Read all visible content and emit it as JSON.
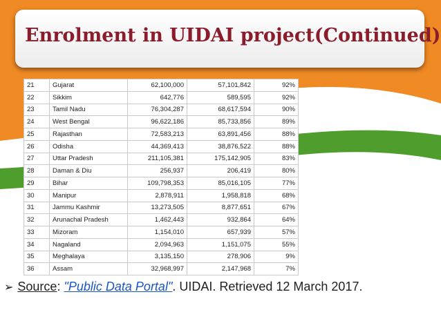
{
  "slide": {
    "title": "Enrolment in UIDAI project(Continued)"
  },
  "table": {
    "rows": [
      {
        "rank": "21",
        "state": "Gujarat",
        "population": "62,100,000",
        "enrolled": "57,101,842",
        "percent": "92%"
      },
      {
        "rank": "22",
        "state": "Sikkim",
        "population": "642,776",
        "enrolled": "589,595",
        "percent": "92%"
      },
      {
        "rank": "23",
        "state": "Tamil Nadu",
        "population": "76,304,287",
        "enrolled": "68,617,594",
        "percent": "90%"
      },
      {
        "rank": "24",
        "state": "West Bengal",
        "population": "96,622,186",
        "enrolled": "85,733,856",
        "percent": "89%"
      },
      {
        "rank": "25",
        "state": "Rajasthan",
        "population": "72,583,213",
        "enrolled": "63,891,456",
        "percent": "88%"
      },
      {
        "rank": "26",
        "state": "Odisha",
        "population": "44,369,413",
        "enrolled": "38,876,522",
        "percent": "88%"
      },
      {
        "rank": "27",
        "state": "Uttar Pradesh",
        "population": "211,105,381",
        "enrolled": "175,142,905",
        "percent": "83%"
      },
      {
        "rank": "28",
        "state": "Daman & Diu",
        "population": "256,937",
        "enrolled": "206,419",
        "percent": "80%"
      },
      {
        "rank": "29",
        "state": "Bihar",
        "population": "109,798,353",
        "enrolled": "85,016,105",
        "percent": "77%"
      },
      {
        "rank": "30",
        "state": "Manipur",
        "population": "2,878,911",
        "enrolled": "1,958,818",
        "percent": "68%"
      },
      {
        "rank": "31",
        "state": "Jammu Kashmir",
        "population": "13,273,505",
        "enrolled": "8,877,651",
        "percent": "67%"
      },
      {
        "rank": "32",
        "state": "Arunachal Pradesh",
        "population": "1,462,443",
        "enrolled": "932,864",
        "percent": "64%"
      },
      {
        "rank": "33",
        "state": "Mizoram",
        "population": "1,154,010",
        "enrolled": "657,939",
        "percent": "57%"
      },
      {
        "rank": "34",
        "state": "Nagaland",
        "population": "2,094,963",
        "enrolled": "1,151,075",
        "percent": "55%"
      },
      {
        "rank": "35",
        "state": "Meghalaya",
        "population": "3,135,150",
        "enrolled": "278,906",
        "percent": "9%"
      },
      {
        "rank": "36",
        "state": "Assam",
        "population": "32,968,997",
        "enrolled": "2,147,968",
        "percent": "7%"
      }
    ]
  },
  "source": {
    "bullet": "➢",
    "label": "Source",
    "colon": ":",
    "link_text": "\"Public Data Portal\"",
    "rest": ". UIDAI. Retrieved 12 March 2017."
  },
  "colors": {
    "title": "#8a1d2b",
    "saffron": "#f08a24",
    "green": "#4f9d2c",
    "link": "#1a57c2"
  }
}
